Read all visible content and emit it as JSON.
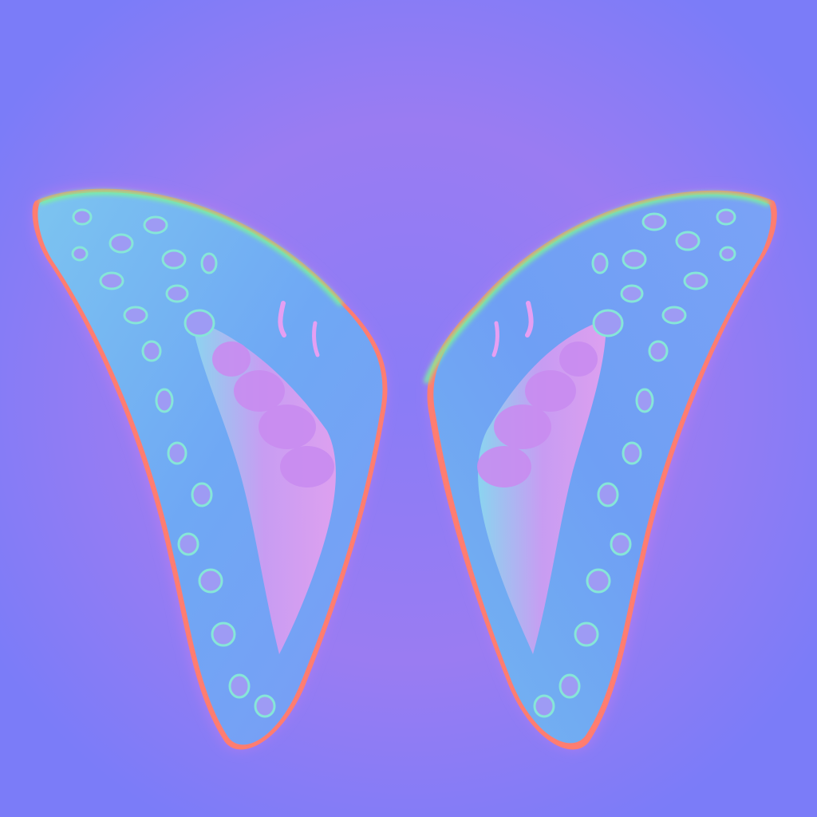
{
  "image": {
    "kind": "normal-map-texture",
    "subject": "butterfly-wings",
    "colors": {
      "background": "#7b7cf8",
      "background_glow": "#a07cf0",
      "wing_base": "#6fa6f6",
      "wing_highlight": "#7fd2ec",
      "edge_green": "#7cf59a",
      "edge_red": "#ff7a6a",
      "spot_pink": "#c48cf0",
      "band_pink": "#e59ff2"
    }
  }
}
